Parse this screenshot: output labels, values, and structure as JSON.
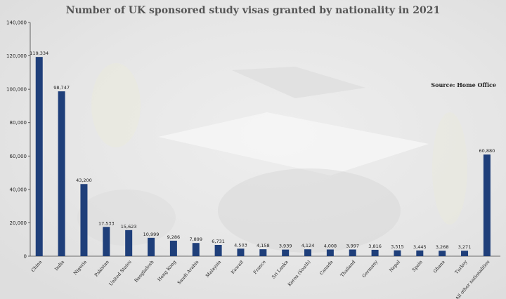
{
  "chart_data": {
    "type": "bar",
    "title": "Number of UK sponsored study visas granted by nationality in 2021",
    "source": "Source: Home Office",
    "xlabel": "",
    "ylabel": "",
    "ylim": [
      0,
      140000
    ],
    "yticks": [
      0,
      20000,
      40000,
      60000,
      80000,
      100000,
      120000,
      140000
    ],
    "ytick_labels": [
      "0",
      "20,000",
      "40,000",
      "60,000",
      "80,000",
      "100,000",
      "120,000",
      "140,000"
    ],
    "grid": false,
    "categories": [
      "China",
      "India",
      "Nigeria",
      "Pakistan",
      "United States",
      "Bangladesh",
      "Hong Kong",
      "Saudi Arabia",
      "Malaysia",
      "Kuwait",
      "France",
      "Sri Lanka",
      "Korea (South)",
      "Canada",
      "Thailand",
      "Germany",
      "Nepal",
      "Spain",
      "Ghana",
      "Turkey",
      "All other nationalities"
    ],
    "values": [
      119334,
      98747,
      43200,
      17533,
      15623,
      10999,
      9286,
      7899,
      6731,
      4503,
      4158,
      3939,
      4124,
      4008,
      3997,
      3816,
      3515,
      3445,
      3268,
      3271,
      60880
    ],
    "value_labels": [
      "119,334",
      "98,747",
      "43,200",
      "17,533",
      "15,623",
      "10,999",
      "9,286",
      "7,899",
      "6,731",
      "4,503",
      "4,158",
      "3,939",
      "4,124",
      "4,008",
      "3,997",
      "3,816",
      "3,515",
      "3,445",
      "3,268",
      "3,271",
      "60,880"
    ],
    "bar_color": "#1f3f7a"
  }
}
